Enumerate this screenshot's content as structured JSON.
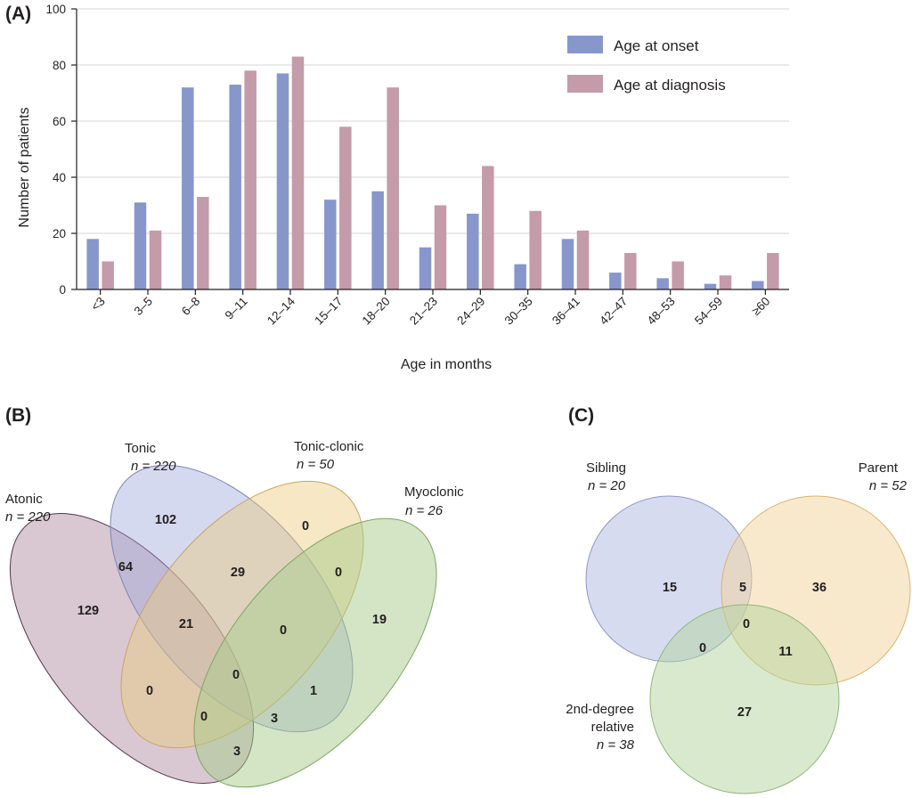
{
  "panels": {
    "a": "(A)",
    "b": "(B)",
    "c": "(C)"
  },
  "chart_data": [
    {
      "type": "bar",
      "xlabel": "Age in months",
      "ylabel": "Number of patients",
      "ylim": [
        0,
        100
      ],
      "yticks": [
        "0",
        "20",
        "40",
        "60",
        "80",
        "100"
      ],
      "grid": true,
      "legend_position": "top-right",
      "categories": [
        "<3",
        "3–5",
        "6–8",
        "9–11",
        "12–14",
        "15–17",
        "18–20",
        "21–23",
        "24–29",
        "30–35",
        "36–41",
        "42–47",
        "48–53",
        "54–59",
        "≥60"
      ],
      "series": [
        {
          "name": "Age at onset",
          "color": "#8797cc",
          "values": [
            18,
            31,
            72,
            73,
            77,
            32,
            35,
            15,
            27,
            9,
            18,
            6,
            4,
            2,
            3
          ]
        },
        {
          "name": "Age at diagnosis",
          "color": "#c49ba8",
          "values": [
            10,
            21,
            33,
            78,
            83,
            58,
            72,
            30,
            44,
            28,
            21,
            13,
            10,
            5,
            13
          ]
        }
      ]
    },
    {
      "type": "venn",
      "sets": [
        {
          "name": "Atonic",
          "n": "n = 220",
          "color": "#a57c91"
        },
        {
          "name": "Tonic",
          "n": "n = 220",
          "color": "#9aa5dc"
        },
        {
          "name": "Tonic-clonic",
          "n": "n = 50",
          "color": "#ecc97f"
        },
        {
          "name": "Myoclonic",
          "n": "n = 26",
          "color": "#a8cc8c"
        }
      ],
      "regions": [
        {
          "sets": [
            "Atonic"
          ],
          "value": "129"
        },
        {
          "sets": [
            "Tonic"
          ],
          "value": "102"
        },
        {
          "sets": [
            "Tonic-clonic"
          ],
          "value": "0"
        },
        {
          "sets": [
            "Myoclonic"
          ],
          "value": "19"
        },
        {
          "sets": [
            "Atonic",
            "Tonic"
          ],
          "value": "64"
        },
        {
          "sets": [
            "Tonic",
            "Tonic-clonic"
          ],
          "value": "29"
        },
        {
          "sets": [
            "Tonic-clonic",
            "Myoclonic"
          ],
          "value": "0"
        },
        {
          "sets": [
            "Atonic",
            "Tonic",
            "Tonic-clonic"
          ],
          "value": "21"
        },
        {
          "sets": [
            "Tonic",
            "Tonic-clonic",
            "Myoclonic"
          ],
          "value": "0"
        },
        {
          "sets": [
            "Atonic",
            "Tonic-clonic"
          ],
          "value": "0"
        },
        {
          "sets": [
            "Atonic",
            "Tonic",
            "Tonic-clonic",
            "Myoclonic"
          ],
          "value": "0"
        },
        {
          "sets": [
            "Tonic",
            "Myoclonic"
          ],
          "value": "1"
        },
        {
          "sets": [
            "Atonic",
            "Tonic-clonic",
            "Myoclonic"
          ],
          "value": "0"
        },
        {
          "sets": [
            "Atonic",
            "Tonic",
            "Myoclonic"
          ],
          "value": "3"
        },
        {
          "sets": [
            "Atonic",
            "Myoclonic"
          ],
          "value": "3"
        }
      ]
    },
    {
      "type": "venn",
      "sets": [
        {
          "name": "Sibling",
          "n": "n = 20",
          "color": "#aab4e0"
        },
        {
          "name": "Parent",
          "n": "n = 52",
          "color": "#f2d39a"
        },
        {
          "name": "2nd-degree relative",
          "name_lines": [
            "2nd-degree",
            "relative"
          ],
          "n": "n = 38",
          "color": "#b3d49e"
        }
      ],
      "regions": [
        {
          "sets": [
            "Sibling"
          ],
          "value": "15"
        },
        {
          "sets": [
            "Sibling",
            "Parent"
          ],
          "value": "5"
        },
        {
          "sets": [
            "Parent"
          ],
          "value": "36"
        },
        {
          "sets": [
            "Sibling",
            "Parent",
            "2nd-degree relative"
          ],
          "value": "0"
        },
        {
          "sets": [
            "Sibling",
            "2nd-degree relative"
          ],
          "value": "0"
        },
        {
          "sets": [
            "Parent",
            "2nd-degree relative"
          ],
          "value": "11"
        },
        {
          "sets": [
            "2nd-degree relative"
          ],
          "value": "27"
        }
      ]
    }
  ]
}
